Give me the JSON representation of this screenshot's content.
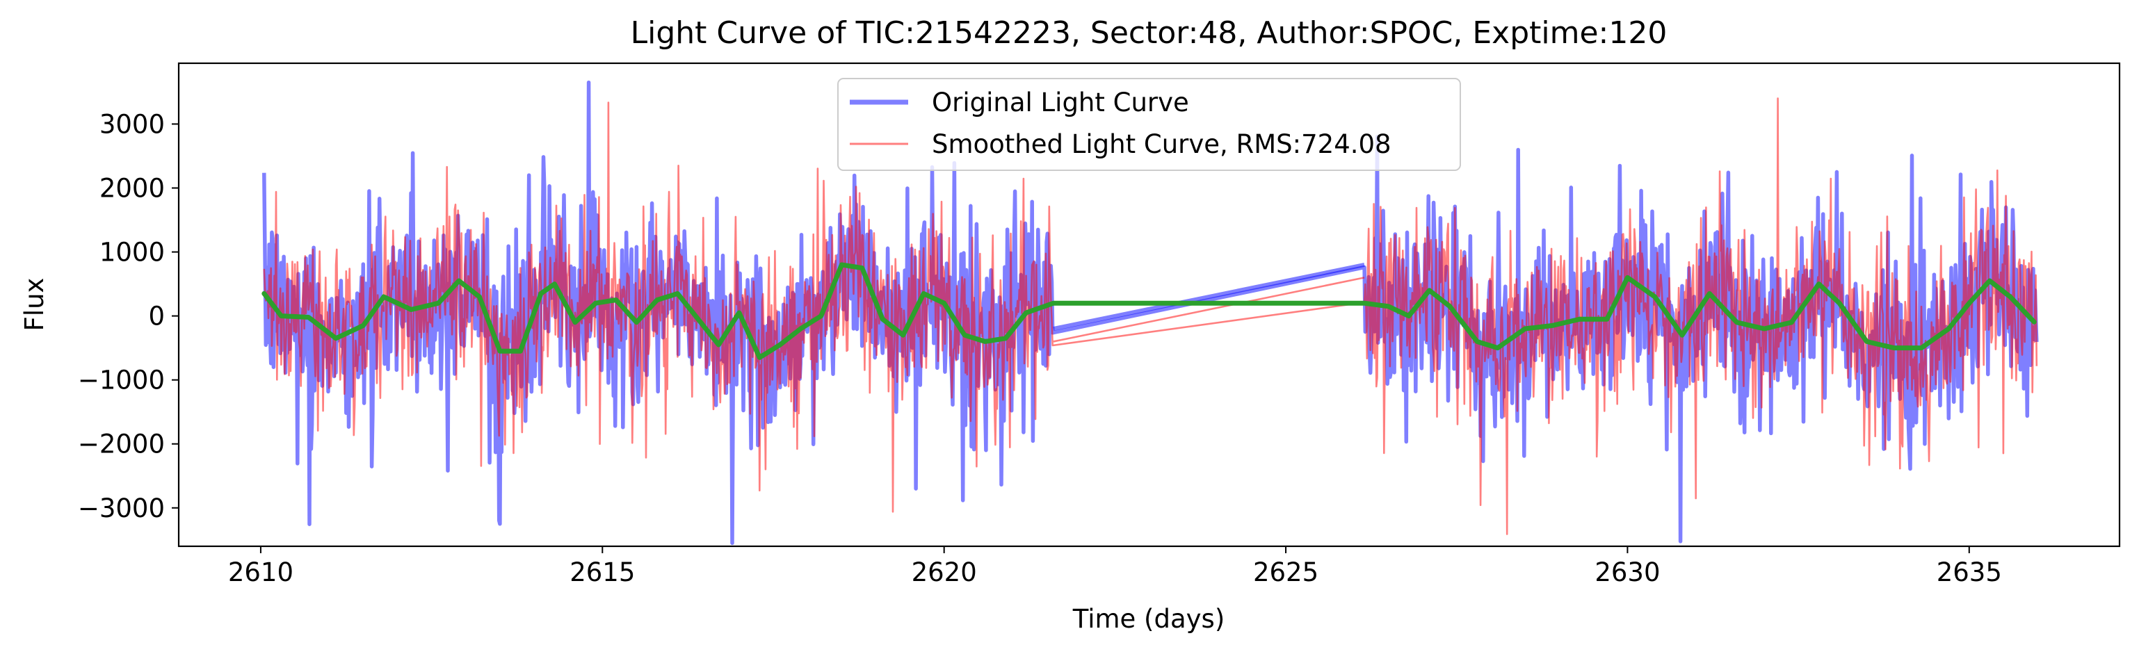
{
  "chart_data": {
    "type": "line",
    "title": "Light Curve of TIC:21542223, Sector:48, Author:SPOC, Exptime:120",
    "xlabel": "Time (days)",
    "ylabel": "Flux",
    "xlim": [
      2608.8,
      2637.2
    ],
    "ylim": [
      -3600,
      3950
    ],
    "xticks": [
      2610,
      2615,
      2620,
      2625,
      2630,
      2635
    ],
    "yticks": [
      -3000,
      -2000,
      -1000,
      0,
      1000,
      2000,
      3000
    ],
    "ytick_labels": [
      "−3000",
      "−2000",
      "−1000",
      "0",
      "1000",
      "2000",
      "3000"
    ],
    "grid": false,
    "legend_position": "upper center",
    "segments": [
      [
        2610.05,
        2621.6
      ],
      [
        2626.15,
        2636.0
      ]
    ],
    "series": [
      {
        "name": "Original Light Curve",
        "color": "#0000ff",
        "style": "thick noisy line, alpha 0.5",
        "typical_range": [
          -1700,
          1800
        ],
        "extremes": {
          "max": 3650,
          "max_time": 2614.8,
          "min": -3250,
          "min_time": 2613.5
        },
        "gap_bridge": [
          [
            2621.6,
            -200
          ],
          [
            2626.15,
            800
          ]
        ]
      },
      {
        "name": "Smoothed Light Curve, RMS:724.08",
        "color": "#ff0000",
        "style": "thin noisy line, alpha 0.5",
        "typical_range": [
          -1700,
          1800
        ],
        "extremes": {
          "max": 3400,
          "max_time": 2632.2,
          "min": -2850,
          "min_time": 2631.0
        },
        "gap_bridge": [
          [
            2621.6,
            -400
          ],
          [
            2626.15,
            600
          ]
        ]
      },
      {
        "color": "#2ca02c",
        "style": "smooth trend line",
        "x": [
          2610.05,
          2610.3,
          2610.7,
          2611.1,
          2611.5,
          2611.8,
          2612.2,
          2612.6,
          2612.9,
          2613.2,
          2613.5,
          2613.8,
          2614.1,
          2614.3,
          2614.6,
          2614.9,
          2615.2,
          2615.5,
          2615.8,
          2616.1,
          2616.4,
          2616.7,
          2617.0,
          2617.3,
          2617.6,
          2617.9,
          2618.2,
          2618.5,
          2618.8,
          2619.1,
          2619.4,
          2619.7,
          2620.0,
          2620.3,
          2620.6,
          2620.9,
          2621.2,
          2621.6,
          2626.15,
          2626.5,
          2626.8,
          2627.1,
          2627.4,
          2627.8,
          2628.1,
          2628.5,
          2628.9,
          2629.3,
          2629.7,
          2630.0,
          2630.4,
          2630.8,
          2631.2,
          2631.6,
          2632.0,
          2632.4,
          2632.8,
          2633.1,
          2633.5,
          2633.9,
          2634.3,
          2634.7,
          2635.0,
          2635.3,
          2635.6,
          2636.0
        ],
        "y": [
          350,
          0,
          -20,
          -350,
          -150,
          300,
          100,
          200,
          550,
          300,
          -550,
          -550,
          350,
          500,
          -100,
          200,
          250,
          -100,
          250,
          350,
          -50,
          -450,
          50,
          -650,
          -450,
          -200,
          0,
          800,
          750,
          -50,
          -300,
          350,
          200,
          -300,
          -400,
          -350,
          50,
          200,
          200,
          150,
          0,
          400,
          150,
          -400,
          -500,
          -200,
          -150,
          -50,
          -50,
          600,
          300,
          -300,
          350,
          -100,
          -200,
          -100,
          500,
          200,
          -400,
          -500,
          -500,
          -200,
          200,
          550,
          300,
          -150
        ]
      }
    ]
  }
}
